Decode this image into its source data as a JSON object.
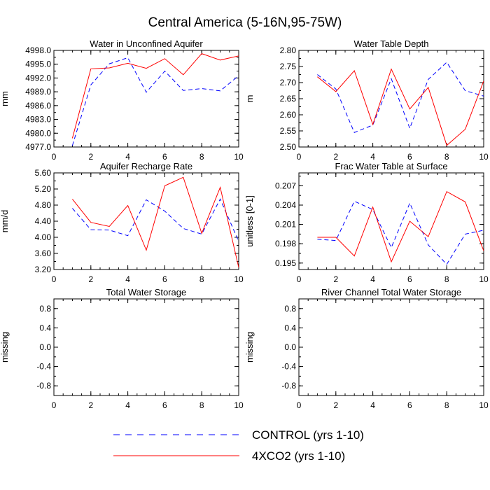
{
  "figure": {
    "title": "Central America (5-16N,95-75W)",
    "legend": [
      {
        "label": "CONTROL (yrs 1-10)",
        "color": "#0000ff",
        "dash": "dashed"
      },
      {
        "label": "4XCO2 (yrs 1-10)",
        "color": "#ff0000",
        "dash": "solid"
      }
    ]
  },
  "chart_data": [
    {
      "type": "line",
      "title": "Water in Unconfined Aquifer",
      "xlabel": "",
      "ylabel": "mm",
      "xlim": [
        0,
        10
      ],
      "ylim": [
        4977.0,
        4998.0
      ],
      "xticks": [
        0,
        2,
        4,
        6,
        8,
        10
      ],
      "xtick_labels": [
        "0",
        "2",
        "4",
        "6",
        "8",
        "10"
      ],
      "yticks": [
        4977.0,
        4980.0,
        4983.0,
        4986.0,
        4989.0,
        4992.0,
        4995.0,
        4998.0
      ],
      "ytick_labels": [
        "4977.0",
        "4980.0",
        "4983.0",
        "4986.0",
        "4989.0",
        "4992.0",
        "4995.0",
        "4998.0"
      ],
      "x": [
        1,
        2,
        3,
        4,
        5,
        6,
        7,
        8,
        9,
        10
      ],
      "series": [
        {
          "name": "CONTROL (yrs 1-10)",
          "values": [
            4977.3,
            4990.5,
            4995.1,
            4996.4,
            4988.9,
            4993.5,
            4989.3,
            4989.7,
            4989.2,
            4992.5
          ]
        },
        {
          "name": "4XCO2 (yrs 1-10)",
          "values": [
            4978.9,
            4994.0,
            4994.2,
            4995.2,
            4994.1,
            4996.2,
            4992.7,
            4997.3,
            4995.9,
            4996.8
          ]
        }
      ]
    },
    {
      "type": "line",
      "title": "Water Table Depth",
      "xlabel": "",
      "ylabel": "m",
      "xlim": [
        0,
        10
      ],
      "ylim": [
        2.5,
        2.8
      ],
      "xticks": [
        0,
        2,
        4,
        6,
        8,
        10
      ],
      "xtick_labels": [
        "0",
        "2",
        "4",
        "6",
        "8",
        "10"
      ],
      "yticks": [
        2.5,
        2.55,
        2.6,
        2.65,
        2.7,
        2.75,
        2.8
      ],
      "ytick_labels": [
        "2.50",
        "2.55",
        "2.60",
        "2.65",
        "2.70",
        "2.75",
        "2.80"
      ],
      "x": [
        1,
        2,
        3,
        4,
        5,
        6,
        7,
        8,
        9,
        10
      ],
      "series": [
        {
          "name": "CONTROL (yrs 1-10)",
          "values": [
            2.725,
            2.68,
            2.545,
            2.568,
            2.712,
            2.558,
            2.71,
            2.763,
            2.675,
            2.658
          ]
        },
        {
          "name": "4XCO2 (yrs 1-10)",
          "values": [
            2.718,
            2.672,
            2.737,
            2.57,
            2.742,
            2.618,
            2.685,
            2.505,
            2.555,
            2.705
          ]
        }
      ]
    },
    {
      "type": "line",
      "title": "Aquifer Recharge Rate",
      "xlabel": "",
      "ylabel": "mm/d",
      "xlim": [
        0,
        10
      ],
      "ylim": [
        3.2,
        5.6
      ],
      "xticks": [
        0,
        2,
        4,
        6,
        8,
        10
      ],
      "xtick_labels": [
        "0",
        "2",
        "4",
        "6",
        "8",
        "10"
      ],
      "yticks": [
        3.2,
        3.6,
        4.0,
        4.4,
        4.8,
        5.2,
        5.6
      ],
      "ytick_labels": [
        "3.20",
        "3.60",
        "4.00",
        "4.40",
        "4.80",
        "5.20",
        "5.60"
      ],
      "x": [
        1,
        2,
        3,
        4,
        5,
        6,
        7,
        8,
        9,
        10
      ],
      "series": [
        {
          "name": "CONTROL (yrs 1-10)",
          "values": [
            4.72,
            4.19,
            4.18,
            4.04,
            4.93,
            4.65,
            4.22,
            4.08,
            4.95,
            3.9
          ]
        },
        {
          "name": "4XCO2 (yrs 1-10)",
          "values": [
            4.95,
            4.37,
            4.27,
            4.79,
            3.68,
            5.28,
            5.49,
            4.1,
            5.24,
            3.25
          ]
        }
      ]
    },
    {
      "type": "line",
      "title": "Frac Water Table at Surface",
      "xlabel": "",
      "ylabel": "unitless [0-1]",
      "xlim": [
        0,
        10
      ],
      "ylim": [
        0.194,
        0.209
      ],
      "xticks": [
        0,
        2,
        4,
        6,
        8,
        10
      ],
      "xtick_labels": [
        "0",
        "2",
        "4",
        "6",
        "8",
        "10"
      ],
      "yticks": [
        0.195,
        0.198,
        0.201,
        0.204,
        0.207
      ],
      "ytick_labels": [
        "0.195",
        "0.198",
        "0.201",
        "0.204",
        "0.207"
      ],
      "x": [
        1,
        2,
        3,
        4,
        5,
        6,
        7,
        8,
        9,
        10
      ],
      "series": [
        {
          "name": "CONTROL (yrs 1-10)",
          "values": [
            0.1987,
            0.1985,
            0.2046,
            0.2033,
            0.1974,
            0.2043,
            0.1978,
            0.1948,
            0.1995,
            0.2001
          ]
        },
        {
          "name": "4XCO2 (yrs 1-10)",
          "values": [
            0.199,
            0.199,
            0.1961,
            0.2037,
            0.1952,
            0.2015,
            0.1991,
            0.2061,
            0.2045,
            0.1969
          ]
        }
      ]
    },
    {
      "type": "line",
      "title": "Total Water Storage",
      "xlabel": "",
      "ylabel": "missing",
      "xlim": [
        0,
        10
      ],
      "ylim": [
        -1.0,
        1.0
      ],
      "xticks": [
        0,
        2,
        4,
        6,
        8,
        10
      ],
      "xtick_labels": [
        "0",
        "2",
        "4",
        "6",
        "8",
        "10"
      ],
      "yticks": [
        -0.8,
        -0.4,
        0.0,
        0.4,
        0.8
      ],
      "ytick_labels": [
        "-0.8",
        "-0.4",
        "0.0",
        "0.4",
        "0.8"
      ],
      "x": [],
      "series": []
    },
    {
      "type": "line",
      "title": "River Channel Total Water Storage",
      "xlabel": "",
      "ylabel": "missing",
      "xlim": [
        0,
        10
      ],
      "ylim": [
        -1.0,
        1.0
      ],
      "xticks": [
        0,
        2,
        4,
        6,
        8,
        10
      ],
      "xtick_labels": [
        "0",
        "2",
        "4",
        "6",
        "8",
        "10"
      ],
      "yticks": [
        -0.8,
        -0.4,
        0.0,
        0.4,
        0.8
      ],
      "ytick_labels": [
        "-0.8",
        "-0.4",
        "0.0",
        "0.4",
        "0.8"
      ],
      "x": [],
      "series": []
    }
  ]
}
